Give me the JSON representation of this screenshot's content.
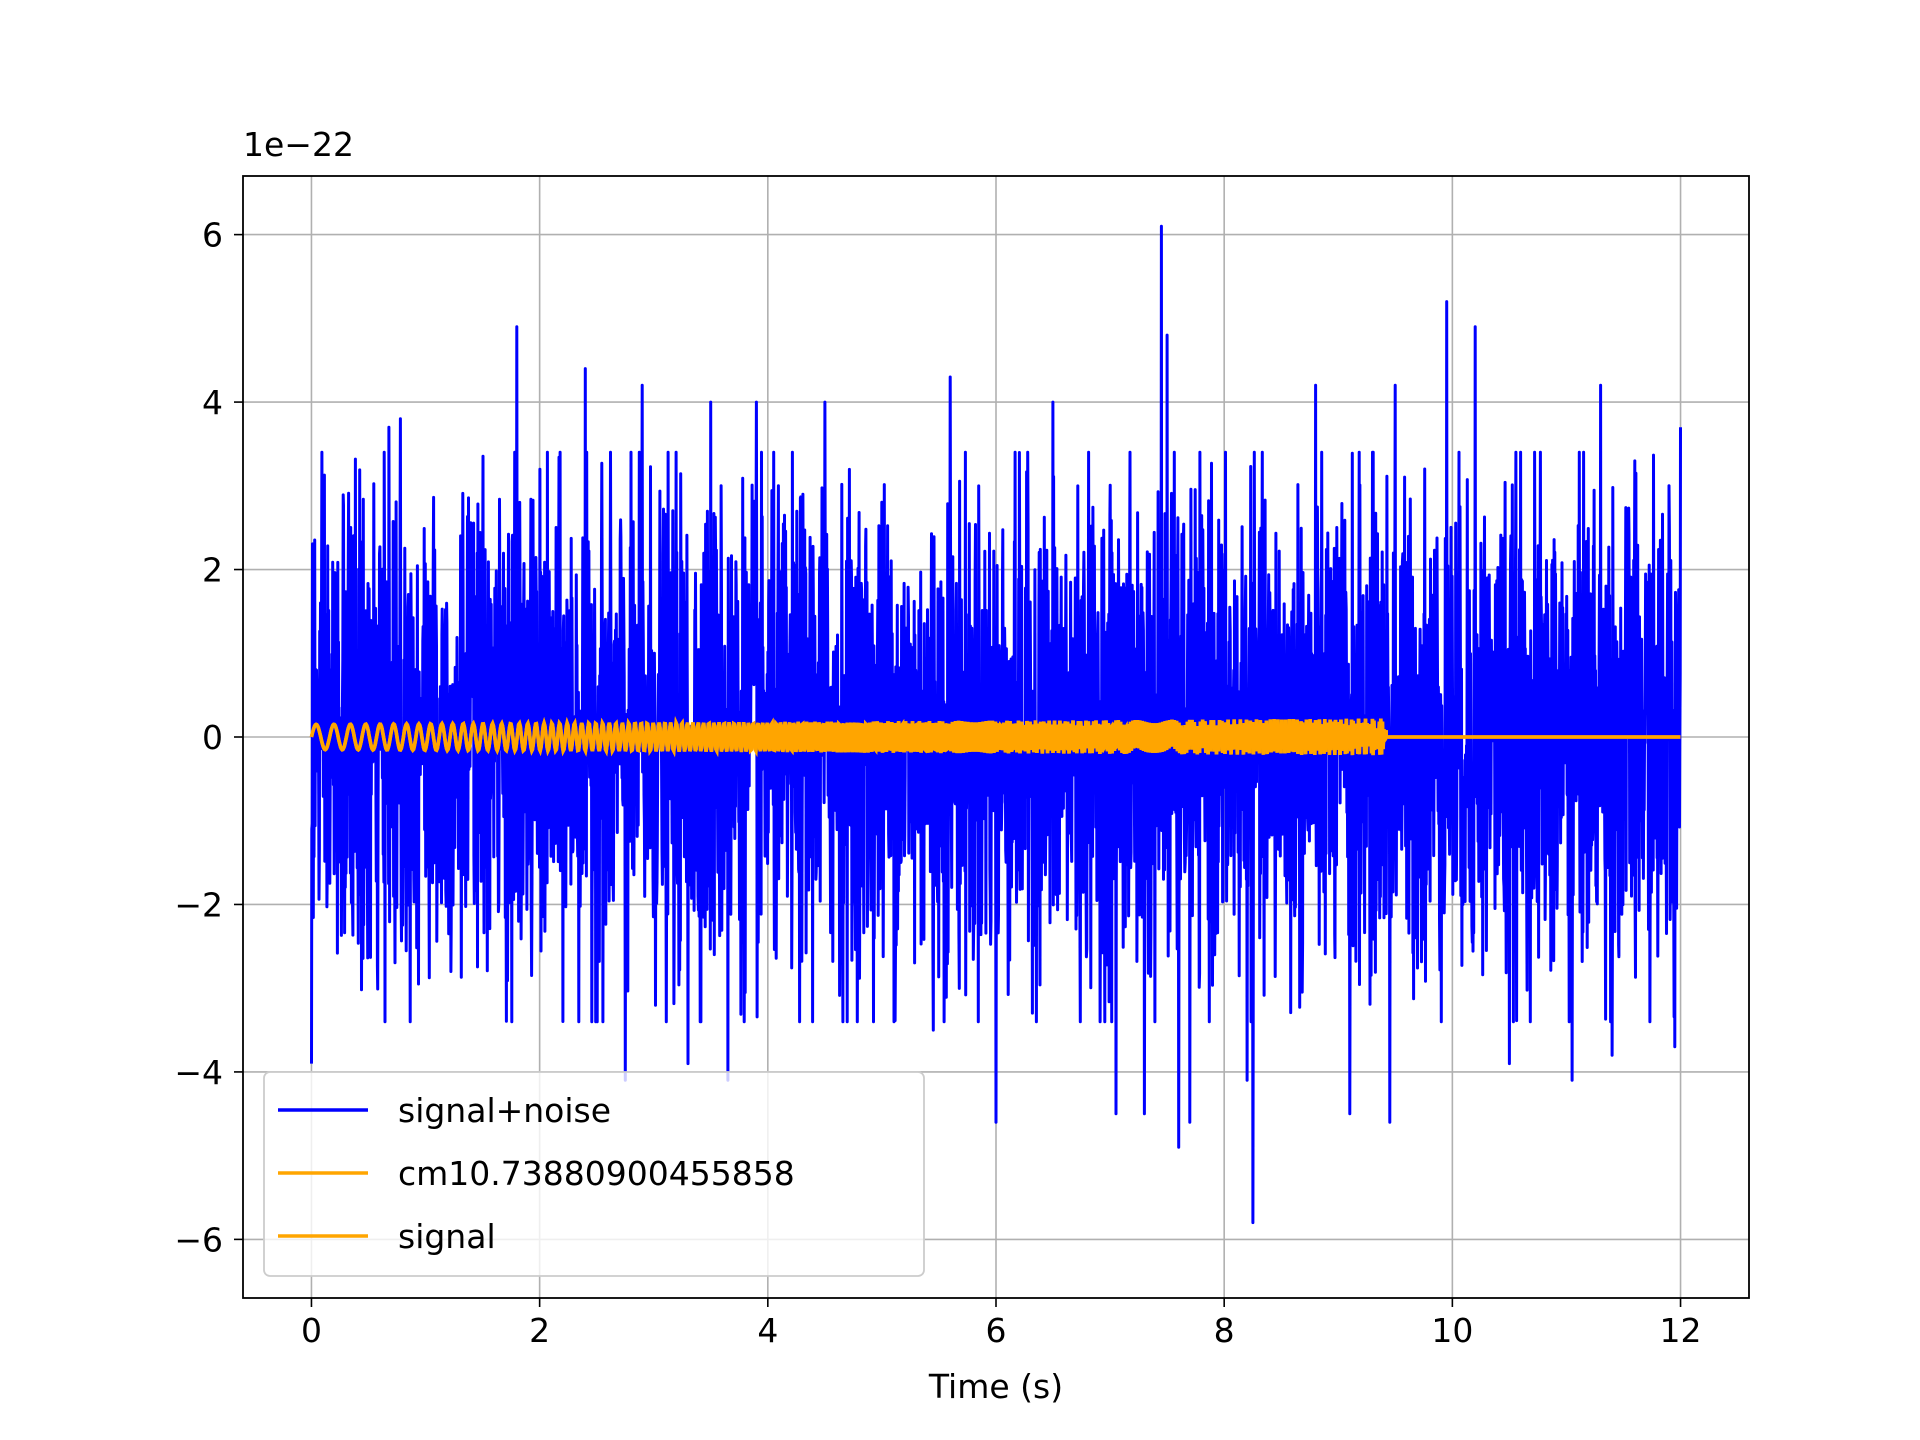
{
  "chart_data": {
    "type": "line",
    "title": "",
    "xlabel": "Time (s)",
    "ylabel": "",
    "y_scale_label": "1e−22",
    "xlim": [
      -0.6,
      12.6
    ],
    "ylim": [
      -6.7,
      6.7
    ],
    "xticks": [
      0,
      2,
      4,
      6,
      8,
      10,
      12
    ],
    "xtick_labels": [
      "0",
      "2",
      "4",
      "6",
      "8",
      "10",
      "12"
    ],
    "yticks": [
      -6,
      -4,
      -2,
      0,
      2,
      4,
      6
    ],
    "ytick_labels": [
      "−6",
      "−4",
      "−2",
      "0",
      "2",
      "4",
      "6"
    ],
    "grid": true,
    "legend_position": "lower-left",
    "series": [
      {
        "name": "signal+noise",
        "color": "#0000ff",
        "x_range": [
          0,
          12
        ],
        "typical_amplitude": 1.5,
        "peaks": [
          {
            "x": 0.68,
            "y": 3.7
          },
          {
            "x": 0.78,
            "y": 3.8
          },
          {
            "x": 1.8,
            "y": 4.9
          },
          {
            "x": 2.4,
            "y": 4.4
          },
          {
            "x": 2.9,
            "y": 4.2
          },
          {
            "x": 3.5,
            "y": 4.0
          },
          {
            "x": 3.9,
            "y": 4.0
          },
          {
            "x": 4.5,
            "y": 4.0
          },
          {
            "x": 5.6,
            "y": 4.3
          },
          {
            "x": 6.0,
            "y": 4.0
          },
          {
            "x": 6.5,
            "y": 4.0
          },
          {
            "x": 7.45,
            "y": 6.1
          },
          {
            "x": 7.5,
            "y": 4.8
          },
          {
            "x": 8.2,
            "y": 4.4
          },
          {
            "x": 8.8,
            "y": 4.2
          },
          {
            "x": 9.1,
            "y": 4.5
          },
          {
            "x": 9.5,
            "y": 4.2
          },
          {
            "x": 9.95,
            "y": 5.2
          },
          {
            "x": 10.2,
            "y": 4.9
          },
          {
            "x": 10.5,
            "y": 4.0
          },
          {
            "x": 11.3,
            "y": 4.2
          },
          {
            "x": 11.9,
            "y": 3.0
          },
          {
            "x": 12.0,
            "y": 3.7
          }
        ],
        "troughs": [
          {
            "x": 0.0,
            "y": -3.9
          },
          {
            "x": 2.75,
            "y": -4.1
          },
          {
            "x": 3.3,
            "y": -3.9
          },
          {
            "x": 3.65,
            "y": -4.1
          },
          {
            "x": 5.45,
            "y": -3.5
          },
          {
            "x": 6.0,
            "y": -4.6
          },
          {
            "x": 7.05,
            "y": -4.5
          },
          {
            "x": 7.3,
            "y": -4.5
          },
          {
            "x": 7.6,
            "y": -4.9
          },
          {
            "x": 7.7,
            "y": -4.6
          },
          {
            "x": 8.2,
            "y": -4.1
          },
          {
            "x": 8.25,
            "y": -5.8
          },
          {
            "x": 9.1,
            "y": -4.5
          },
          {
            "x": 9.45,
            "y": -4.6
          },
          {
            "x": 10.5,
            "y": -3.9
          },
          {
            "x": 11.05,
            "y": -4.1
          },
          {
            "x": 11.4,
            "y": -3.8
          },
          {
            "x": 11.95,
            "y": -3.7
          }
        ]
      },
      {
        "name": "cm10.73880900455858",
        "color": "#ffa500",
        "x_range": [
          0,
          9.42
        ],
        "amplitude_start": 0.15,
        "amplitude_end": 0.22,
        "zero_after_end": true
      },
      {
        "name": "signal",
        "color": "#ffa500",
        "x_range": [
          0,
          9.42
        ],
        "amplitude_start": 0.15,
        "amplitude_end": 0.22,
        "zero_after_end": true
      }
    ]
  }
}
